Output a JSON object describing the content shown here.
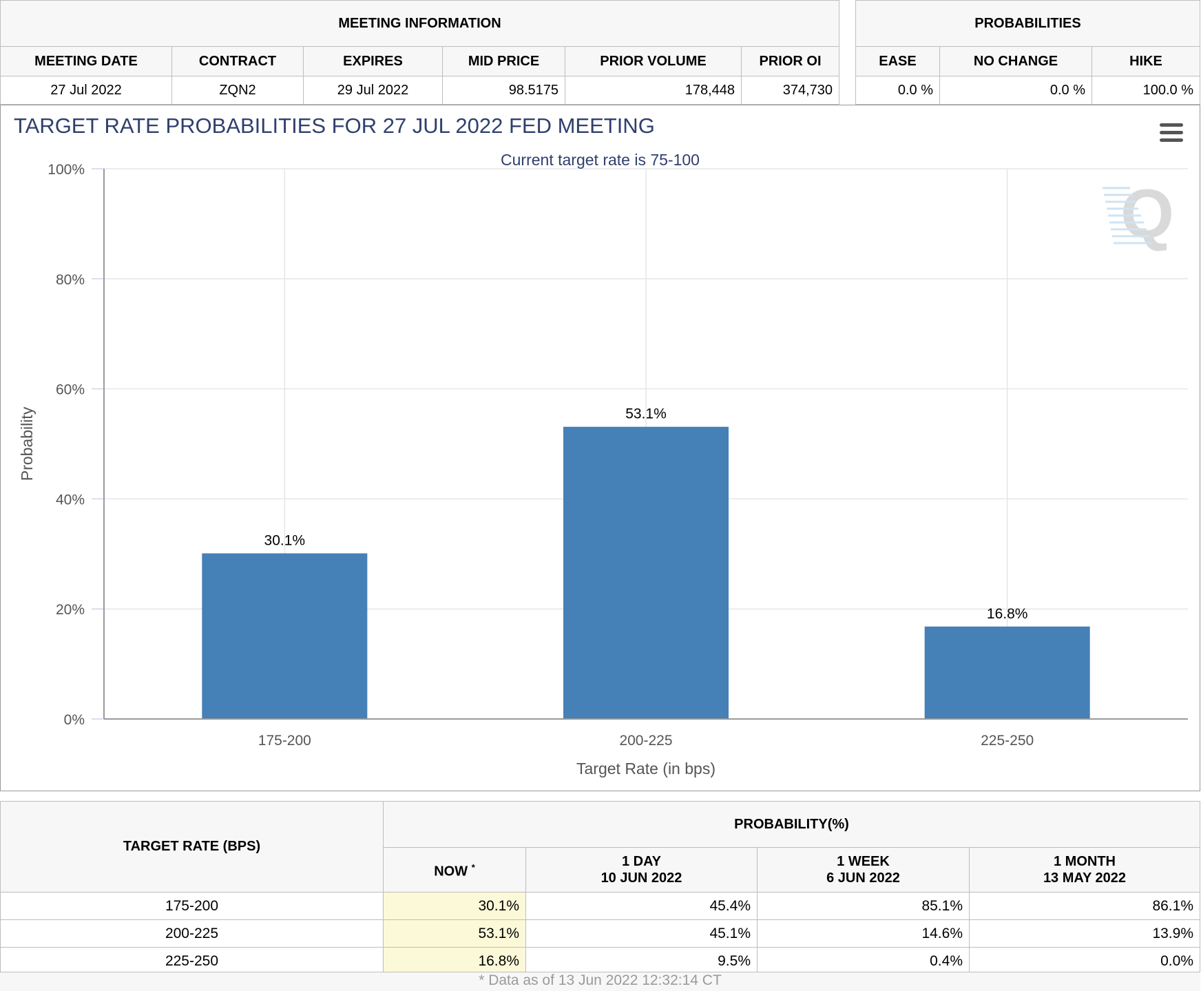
{
  "meeting_info": {
    "header": "MEETING INFORMATION",
    "columns": [
      "MEETING DATE",
      "CONTRACT",
      "EXPIRES",
      "MID PRICE",
      "PRIOR VOLUME",
      "PRIOR OI"
    ],
    "row": [
      "27 Jul 2022",
      "ZQN2",
      "29 Jul 2022",
      "98.5175",
      "178,448",
      "374,730"
    ]
  },
  "probabilities": {
    "header": "PROBABILITIES",
    "columns": [
      "EASE",
      "NO CHANGE",
      "HIKE"
    ],
    "row": [
      "0.0 %",
      "0.0 %",
      "100.0 %"
    ]
  },
  "chart_data": {
    "type": "bar",
    "title": "TARGET RATE PROBABILITIES FOR 27 JUL 2022 FED MEETING",
    "subtitle": "Current target rate is 75-100",
    "categories": [
      "175-200",
      "200-225",
      "225-250"
    ],
    "values": [
      30.1,
      53.1,
      16.8
    ],
    "data_labels": [
      "30.1%",
      "53.1%",
      "16.8%"
    ],
    "xlabel": "Target Rate (in bps)",
    "ylabel": "Probability",
    "ylim": [
      0,
      100
    ],
    "yticks": [
      "0%",
      "20%",
      "40%",
      "60%",
      "80%",
      "100%"
    ],
    "ytick_values": [
      0,
      20,
      40,
      60,
      80,
      100
    ],
    "grid": true,
    "bar_color": "#4580b6",
    "watermark": "Q"
  },
  "bottom_table": {
    "rate_header": "TARGET RATE (BPS)",
    "prob_header": "PROBABILITY(%)",
    "now_label": "NOW",
    "now_mark": "*",
    "periods": [
      {
        "label": "1 DAY",
        "date": "10 JUN 2022"
      },
      {
        "label": "1 WEEK",
        "date": "6 JUN 2022"
      },
      {
        "label": "1 MONTH",
        "date": "13 MAY 2022"
      }
    ],
    "rows": [
      {
        "rate": "175-200",
        "now": "30.1%",
        "day": "45.4%",
        "week": "85.1%",
        "month": "86.1%"
      },
      {
        "rate": "200-225",
        "now": "53.1%",
        "day": "45.1%",
        "week": "14.6%",
        "month": "13.9%"
      },
      {
        "rate": "225-250",
        "now": "16.8%",
        "day": "9.5%",
        "week": "0.4%",
        "month": "0.0%"
      }
    ]
  },
  "footnote": "* Data as of 13 Jun 2022 12:32:14 CT"
}
